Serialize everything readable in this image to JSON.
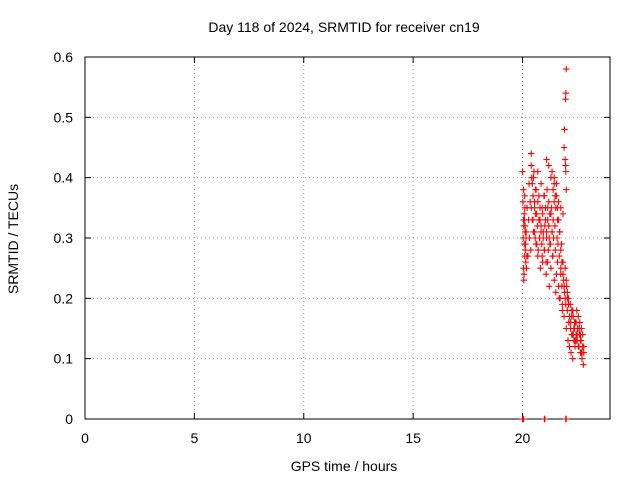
{
  "chart_data": {
    "type": "scatter",
    "title": "Day 118 of 2024, SRMTID for receiver cn19",
    "xlabel": "GPS time / hours",
    "ylabel": "SRMTID / TECUs",
    "xlim": [
      0,
      24
    ],
    "ylim": [
      0,
      0.6
    ],
    "x_ticks": [
      0,
      5,
      10,
      15,
      20
    ],
    "y_ticks": [
      0,
      0.1,
      0.2,
      0.3,
      0.4,
      0.5,
      0.6
    ],
    "x_tick_labels": [
      "0",
      "5",
      "10",
      "15",
      "20"
    ],
    "y_tick_labels": [
      "0",
      "0.1",
      "0.2",
      "0.3",
      "0.4",
      "0.5",
      "0.6"
    ],
    "grid": true,
    "marker": "+",
    "color": "#ff0000",
    "series": [
      {
        "x": [
          20.0,
          20.02,
          20.05,
          20.03,
          20.06,
          20.08,
          20.1,
          20.12,
          20.05,
          20.07,
          20.09,
          20.11,
          20.13,
          20.15,
          20.04,
          20.08,
          20.12,
          20.14,
          20.16,
          20.18,
          20.2,
          20.06,
          20.1,
          20.17,
          20.21,
          20.25,
          20.28,
          20.3,
          20.32,
          20.35,
          20.38,
          20.4,
          20.42,
          20.45,
          20.48,
          20.5,
          20.52,
          20.55,
          20.58,
          20.6,
          20.62,
          20.65,
          20.68,
          20.7,
          20.72,
          20.75,
          20.78,
          20.8,
          20.82,
          20.85,
          20.88,
          20.9,
          20.92,
          20.95,
          20.98,
          21.0,
          21.02,
          21.05,
          21.08,
          21.1,
          21.12,
          21.15,
          21.18,
          21.2,
          21.22,
          21.25,
          21.28,
          21.3,
          21.32,
          21.35,
          21.38,
          21.4,
          21.42,
          21.45,
          21.48,
          21.5,
          21.52,
          21.55,
          21.58,
          21.6,
          21.62,
          21.65,
          21.68,
          21.7,
          21.72,
          21.75,
          21.78,
          21.8,
          21.82,
          21.85,
          21.88,
          21.9,
          21.92,
          21.95,
          21.98,
          22.0,
          22.02,
          22.05,
          22.08,
          22.1,
          22.12,
          22.15,
          22.18,
          22.2,
          22.22,
          22.25,
          22.28,
          22.3,
          22.32,
          22.35,
          22.38,
          22.4,
          22.42,
          22.45,
          22.48,
          22.5,
          22.52,
          22.55,
          22.58,
          22.6,
          22.62,
          22.65,
          22.68,
          22.7,
          22.72,
          22.75,
          22.78,
          22.8,
          20.4,
          20.45,
          20.5,
          20.55,
          20.6,
          20.65,
          20.7,
          20.75,
          20.8,
          20.85,
          20.9,
          20.95,
          21.0,
          21.05,
          21.1,
          21.15,
          21.2,
          21.25,
          21.3,
          21.35,
          21.4,
          21.45,
          21.5,
          21.55,
          21.6,
          21.65,
          21.7,
          21.75,
          21.8,
          21.85,
          21.9,
          21.95,
          22.0,
          22.05,
          22.1,
          22.15,
          22.2,
          22.25,
          22.3,
          22.35,
          22.4,
          22.45,
          22.5,
          22.55,
          22.6,
          22.65,
          22.7,
          22.75,
          22.8,
          21.1,
          21.2,
          21.35,
          21.45,
          21.55,
          21.65,
          21.75,
          21.85,
          21.9,
          21.92,
          21.95,
          21.97,
          21.98,
          22.0,
          21.98,
          21.97,
          22.0,
          20.4,
          20.48,
          20.55,
          20.62,
          20.7,
          20.78,
          20.85,
          20.92,
          21.0,
          21.08,
          21.15,
          21.22,
          21.3,
          21.38,
          21.45,
          21.52,
          21.6,
          21.68,
          21.75,
          21.82,
          21.9,
          22.05,
          22.12,
          22.18,
          22.25,
          22.32,
          22.38,
          22.45,
          22.52,
          22.58,
          22.65,
          22.72,
          20.0,
          20.02,
          20.05,
          21.0,
          21.02,
          21.98,
          22.0
        ],
        "y": [
          0.41,
          0.36,
          0.33,
          0.3,
          0.32,
          0.29,
          0.27,
          0.31,
          0.25,
          0.24,
          0.33,
          0.35,
          0.28,
          0.26,
          0.38,
          0.34,
          0.32,
          0.29,
          0.3,
          0.25,
          0.27,
          0.23,
          0.37,
          0.31,
          0.35,
          0.27,
          0.33,
          0.39,
          0.3,
          0.36,
          0.28,
          0.44,
          0.4,
          0.33,
          0.37,
          0.31,
          0.41,
          0.35,
          0.3,
          0.34,
          0.38,
          0.29,
          0.32,
          0.36,
          0.28,
          0.33,
          0.3,
          0.35,
          0.25,
          0.31,
          0.29,
          0.27,
          0.34,
          0.3,
          0.37,
          0.28,
          0.32,
          0.35,
          0.26,
          0.31,
          0.38,
          0.33,
          0.28,
          0.36,
          0.3,
          0.34,
          0.29,
          0.4,
          0.35,
          0.31,
          0.27,
          0.33,
          0.3,
          0.36,
          0.32,
          0.28,
          0.35,
          0.24,
          0.3,
          0.33,
          0.29,
          0.22,
          0.27,
          0.31,
          0.2,
          0.25,
          0.29,
          0.22,
          0.19,
          0.26,
          0.23,
          0.17,
          0.21,
          0.25,
          0.19,
          0.15,
          0.22,
          0.18,
          0.13,
          0.2,
          0.16,
          0.12,
          0.19,
          0.15,
          0.11,
          0.18,
          0.14,
          0.1,
          0.17,
          0.13,
          0.15,
          0.12,
          0.16,
          0.14,
          0.18,
          0.13,
          0.15,
          0.17,
          0.12,
          0.14,
          0.16,
          0.11,
          0.13,
          0.15,
          0.1,
          0.12,
          0.09,
          0.11,
          0.42,
          0.39,
          0.4,
          0.36,
          0.38,
          0.34,
          0.41,
          0.37,
          0.33,
          0.39,
          0.35,
          0.31,
          0.37,
          0.33,
          0.3,
          0.35,
          0.32,
          0.29,
          0.34,
          0.31,
          0.38,
          0.4,
          0.37,
          0.39,
          0.35,
          0.33,
          0.31,
          0.28,
          0.26,
          0.24,
          0.22,
          0.2,
          0.23,
          0.21,
          0.19,
          0.17,
          0.16,
          0.14,
          0.18,
          0.15,
          0.13,
          0.16,
          0.14,
          0.12,
          0.15,
          0.13,
          0.11,
          0.14,
          0.12,
          0.43,
          0.42,
          0.41,
          0.39,
          0.37,
          0.36,
          0.35,
          0.34,
          0.45,
          0.48,
          0.43,
          0.53,
          0.54,
          0.58,
          0.41,
          0.42,
          0.38,
          0.35,
          0.33,
          0.31,
          0.29,
          0.27,
          0.3,
          0.32,
          0.26,
          0.28,
          0.24,
          0.26,
          0.22,
          0.25,
          0.27,
          0.23,
          0.21,
          0.26,
          0.2,
          0.24,
          0.18,
          0.22,
          0.2,
          0.16,
          0.19,
          0.17,
          0.14,
          0.16,
          0.13,
          0.15,
          0.12,
          0.14,
          0.11,
          0.0,
          0.0,
          0.0,
          0.0,
          0.0,
          0.0,
          0.0
        ]
      }
    ]
  }
}
